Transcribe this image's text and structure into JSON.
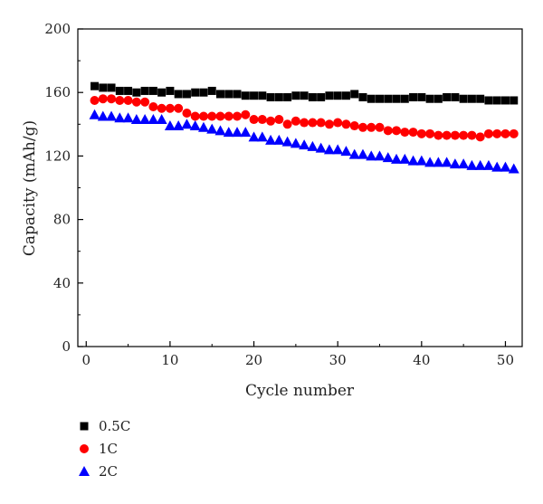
{
  "chart_data": {
    "type": "scatter",
    "title": "",
    "xlabel": "Cycle number",
    "ylabel": "Capacity (mAh/g)",
    "xlim": [
      -1,
      52
    ],
    "ylim": [
      0,
      200
    ],
    "xticks": [
      0,
      10,
      20,
      30,
      40,
      50
    ],
    "yticks": [
      0,
      40,
      80,
      120,
      160,
      200
    ],
    "grid": false,
    "legend_position": "bottom-left, below plot",
    "series": [
      {
        "name": "0.5C",
        "marker": "square",
        "color": "#000000",
        "x": [
          1,
          2,
          3,
          4,
          5,
          6,
          7,
          8,
          9,
          10,
          11,
          12,
          13,
          14,
          15,
          16,
          17,
          18,
          19,
          20,
          21,
          22,
          23,
          24,
          25,
          26,
          27,
          28,
          29,
          30,
          31,
          32,
          33,
          34,
          35,
          36,
          37,
          38,
          39,
          40,
          41,
          42,
          43,
          44,
          45,
          46,
          47,
          48,
          49,
          50,
          51
        ],
        "values": [
          164,
          163,
          163,
          161,
          161,
          160,
          161,
          161,
          160,
          161,
          159,
          159,
          160,
          160,
          161,
          159,
          159,
          159,
          158,
          158,
          158,
          157,
          157,
          157,
          158,
          158,
          157,
          157,
          158,
          158,
          158,
          159,
          157,
          156,
          156,
          156,
          156,
          156,
          157,
          157,
          156,
          156,
          157,
          157,
          156,
          156,
          156,
          155,
          155,
          155,
          155
        ]
      },
      {
        "name": "1C",
        "marker": "circle",
        "color": "#ff0000",
        "x": [
          1,
          2,
          3,
          4,
          5,
          6,
          7,
          8,
          9,
          10,
          11,
          12,
          13,
          14,
          15,
          16,
          17,
          18,
          19,
          20,
          21,
          22,
          23,
          24,
          25,
          26,
          27,
          28,
          29,
          30,
          31,
          32,
          33,
          34,
          35,
          36,
          37,
          38,
          39,
          40,
          41,
          42,
          43,
          44,
          45,
          46,
          47,
          48,
          49,
          50,
          51
        ],
        "values": [
          155,
          156,
          156,
          155,
          155,
          154,
          154,
          151,
          150,
          150,
          150,
          147,
          145,
          145,
          145,
          145,
          145,
          145,
          146,
          143,
          143,
          142,
          143,
          140,
          142,
          141,
          141,
          141,
          140,
          141,
          140,
          139,
          138,
          138,
          138,
          136,
          136,
          135,
          135,
          134,
          134,
          133,
          133,
          133,
          133,
          133,
          132,
          134,
          134,
          134,
          134
        ]
      },
      {
        "name": "2C",
        "marker": "triangle",
        "color": "#0000ff",
        "x": [
          1,
          2,
          3,
          4,
          5,
          6,
          7,
          8,
          9,
          10,
          11,
          12,
          13,
          14,
          15,
          16,
          17,
          18,
          19,
          20,
          21,
          22,
          23,
          24,
          25,
          26,
          27,
          28,
          29,
          30,
          31,
          32,
          33,
          34,
          35,
          36,
          37,
          38,
          39,
          40,
          41,
          42,
          43,
          44,
          45,
          46,
          47,
          48,
          49,
          50,
          51
        ],
        "values": [
          146,
          145,
          145,
          144,
          144,
          143,
          143,
          143,
          143,
          139,
          139,
          140,
          139,
          138,
          137,
          136,
          135,
          135,
          135,
          132,
          132,
          130,
          130,
          129,
          128,
          127,
          126,
          125,
          124,
          124,
          123,
          121,
          121,
          120,
          120,
          119,
          118,
          118,
          117,
          117,
          116,
          116,
          116,
          115,
          115,
          114,
          114,
          114,
          113,
          113,
          112
        ]
      }
    ]
  }
}
